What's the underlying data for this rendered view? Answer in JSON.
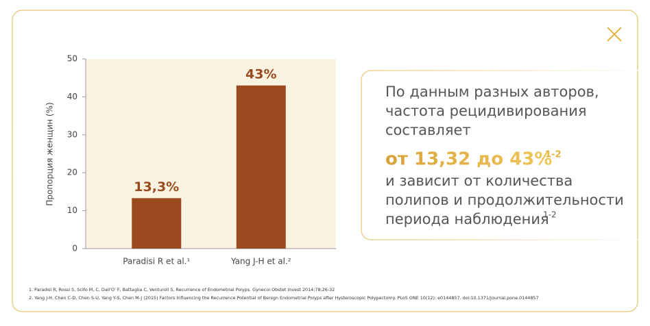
{
  "chart_data": {
    "type": "bar",
    "y_label": "Пропорция женщин (%)",
    "categories": [
      "Paradisi R et al.¹",
      "Yang J-H et al.²"
    ],
    "values": [
      13.3,
      43
    ],
    "value_labels": [
      "13,3%",
      "43%"
    ],
    "color": "#9a4a1e",
    "ylim": [
      0,
      50
    ],
    "yticks": [
      0,
      10,
      20,
      30,
      40,
      50
    ]
  },
  "callout": {
    "line1": "По данным разных авторов,",
    "line2": "частота рецидивирования",
    "line3": "составляет",
    "highlight": "от 13,32 до 43%",
    "highlight_sup": "1-2",
    "line5": "и зависит от количества",
    "line6": "полипов и продолжительности",
    "line7": "периода наблюдения",
    "line7_sup": "1-2"
  },
  "footnotes": [
    "1. Paradisi R, Rossi S, Scifo M, C, Dall'O' F, Battaglia C, Venturoli S, Recurrence of Endometrial Polyps. Gynecol Obstet Invest 2014;78:26-32",
    "2. Yang J-H, Chen C-D, Chen S-U, Yang Y-S, Chen M-J (2015) Factors Influencing the Recurrence Potential of Benign Endometrial Polyps after Hysteroscopic Polypectomy. PLoS ONE 10(12): e0144857. doi:10.1371/journal.pone.0144857"
  ]
}
